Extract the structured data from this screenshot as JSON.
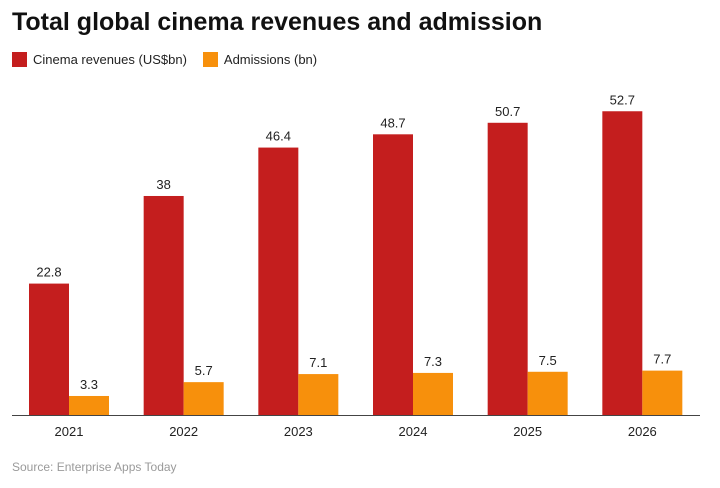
{
  "colors": {
    "revenues": "#c41e1e",
    "admissions": "#f7900c",
    "axis": "#444444"
  },
  "source": "Source: Enterprise Apps Today",
  "chart_data": {
    "type": "bar",
    "title": "Total global cinema revenues and admission",
    "categories": [
      "2021",
      "2022",
      "2023",
      "2024",
      "2025",
      "2026"
    ],
    "series": [
      {
        "name": "Cinema revenues (US$bn)",
        "values": [
          22.8,
          38,
          46.4,
          48.7,
          50.7,
          52.7
        ]
      },
      {
        "name": "Admissions (bn)",
        "values": [
          3.3,
          5.7,
          7.1,
          7.3,
          7.5,
          7.7
        ]
      }
    ],
    "data_labels": [
      [
        "22.8",
        "38",
        "46.4",
        "48.7",
        "50.7",
        "52.7"
      ],
      [
        "3.3",
        "5.7",
        "7.1",
        "7.3",
        "7.5",
        "7.7"
      ]
    ],
    "ylim": [
      0,
      55
    ],
    "grid": false,
    "legend_position": "top-left"
  }
}
